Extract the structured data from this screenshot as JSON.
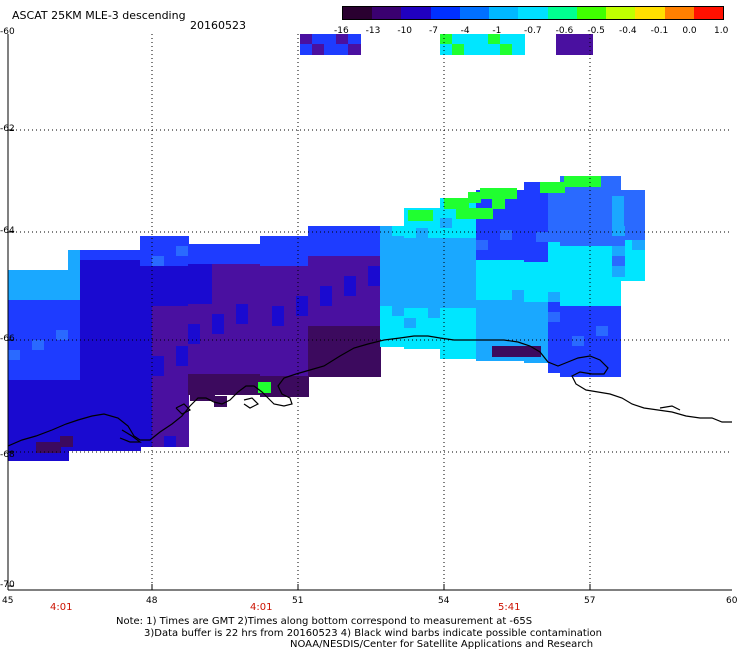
{
  "header": {
    "title": "ASCAT 25KM MLE-3 descending",
    "date": "20160523"
  },
  "colorbar": {
    "labels": [
      "-16",
      "-13",
      "-10",
      "-7",
      "-4",
      "-1",
      "-0.7",
      "-0.6",
      "-0.5",
      "-0.4",
      "-0.1",
      "0.0",
      "1.0"
    ],
    "colors": [
      "#2a0030",
      "#3a0070",
      "#2000c0",
      "#0030ff",
      "#0070ff",
      "#00b8ff",
      "#00e0ff",
      "#00ff90",
      "#40ff00",
      "#c0ff00",
      "#ffe000",
      "#ff8000",
      "#ff1000"
    ]
  },
  "axes": {
    "lat_labels": [
      "-60",
      "-62",
      "-64",
      "-66",
      "-68",
      "-70"
    ],
    "lon_labels": [
      "45",
      "48",
      "51",
      "54",
      "57",
      "60"
    ]
  },
  "times": [
    "4:01",
    "4:01",
    "5:41"
  ],
  "notes": {
    "line1": "Note: 1) Times are GMT 2)Times along bottom correspond to measurement at -65S",
    "line2": "3)Data buffer is 22 hrs from 20160523 4) Black wind barbs indicate possible contamination",
    "line3": "NOAA/NESDIS/Center for Satellite Applications and Research"
  },
  "map_colors": {
    "deep_purple": "#3c0a5e",
    "purple": "#4a10a0",
    "dark_blue": "#1a0ad0",
    "blue": "#1e3cff",
    "mid_blue": "#2a6aff",
    "sky": "#1aa8ff",
    "cyan": "#00e6ff",
    "green": "#20ff30"
  }
}
